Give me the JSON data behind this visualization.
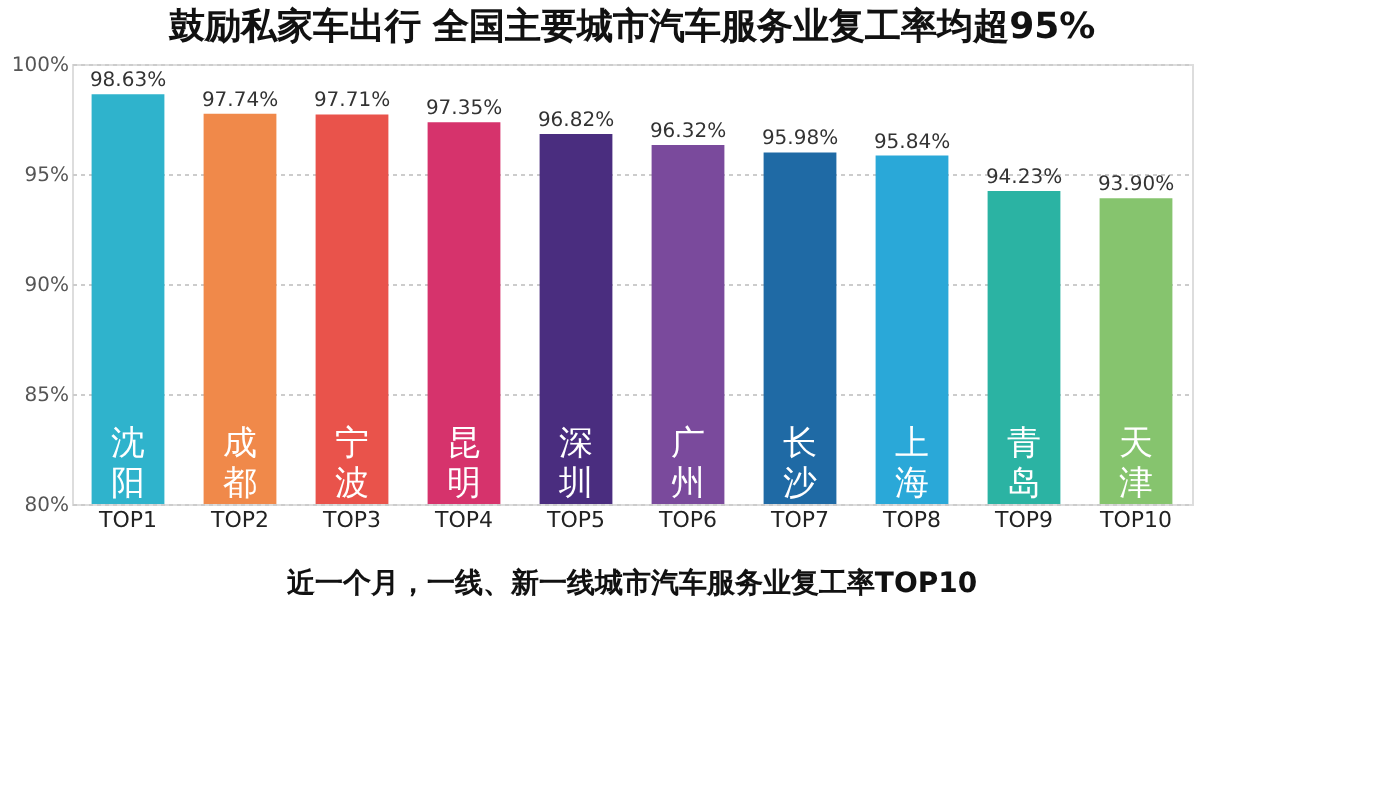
{
  "chart_data": {
    "type": "bar",
    "title": "鼓励私家车出行  全国主要城市汽车服务业复工率均超95%",
    "categories": [
      "TOP1",
      "TOP2",
      "TOP3",
      "TOP4",
      "TOP5",
      "TOP6",
      "TOP7",
      "TOP8",
      "TOP9",
      "TOP10"
    ],
    "values": [
      98.63,
      97.74,
      97.71,
      97.35,
      96.82,
      96.32,
      95.98,
      95.84,
      94.23,
      93.9
    ],
    "value_labels": [
      "98.63%",
      "97.74%",
      "97.71%",
      "97.35%",
      "96.82%",
      "96.32%",
      "95.98%",
      "95.84%",
      "94.23%",
      "93.90%"
    ],
    "colors": [
      "#2fb3cc",
      "#f0894a",
      "#e9534b",
      "#d6336c",
      "#4a2d7f",
      "#7a4a9c",
      "#1f6aa5",
      "#2aa8d8",
      "#2bb3a3",
      "#86c46e"
    ],
    "ylim": [
      80,
      100
    ],
    "yticks": [
      {
        "value": 80,
        "label": "80%"
      },
      {
        "value": 85,
        "label": "85%"
      },
      {
        "value": 90,
        "label": "90%"
      },
      {
        "value": 95,
        "label": "95%"
      },
      {
        "value": 100,
        "label": "100%"
      }
    ],
    "grid": "y",
    "annotations": [
      "沈阳",
      "成都",
      "宁波",
      "昆明",
      "深圳",
      "广州",
      "长沙",
      "上海",
      "青岛",
      "天津",
      "近一个月，一线、新一线城市汽车服务业复工率TOP10"
    ]
  }
}
